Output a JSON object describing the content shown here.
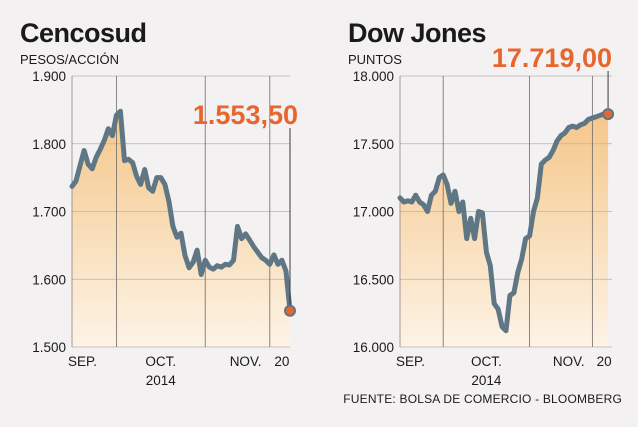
{
  "source": "FUENTE: BOLSA DE COMERCIO - BLOOMBERG",
  "colors": {
    "line": "#5f7684",
    "accent": "#e8662e",
    "area_top": "#f5c78a",
    "area_bottom": "#fdf3e6"
  },
  "chart_data": [
    {
      "type": "area",
      "title": "Cencosud",
      "ylabel": "PESOS/ACCIÓN",
      "ylim": [
        1500,
        1900
      ],
      "yticks": [
        1500,
        1600,
        1700,
        1800,
        1900
      ],
      "ytick_labels": [
        "1.500",
        "1.600",
        "1.700",
        "1.800",
        "1.900"
      ],
      "xticks": [
        {
          "label": "SEP.",
          "x": 1
        },
        {
          "label": "OCT.",
          "x": 22
        },
        {
          "label": "NOV.",
          "x": 43
        },
        {
          "label": "20",
          "x": 52
        }
      ],
      "month_lines": [
        11,
        33,
        49
      ],
      "xlim": [
        0,
        54
      ],
      "year": "2014",
      "last_value_label": "1.553,50",
      "series": [
        {
          "values": [
            1737,
            1745,
            1768,
            1790,
            1770,
            1763,
            1780,
            1792,
            1805,
            1822,
            1812,
            1842,
            1848,
            1775,
            1777,
            1772,
            1752,
            1740,
            1762,
            1735,
            1730,
            1750,
            1750,
            1740,
            1715,
            1678,
            1662,
            1668,
            1635,
            1617,
            1625,
            1643,
            1607,
            1628,
            1618,
            1615,
            1620,
            1618,
            1622,
            1621,
            1628,
            1678,
            1660,
            1667,
            1658,
            1648,
            1640,
            1632,
            1628,
            1622,
            1636,
            1622,
            1628,
            1612,
            1553.5
          ]
        }
      ]
    },
    {
      "type": "area",
      "title": "Dow Jones",
      "ylabel": "PUNTOS",
      "ylim": [
        16000,
        18000
      ],
      "yticks": [
        16000,
        16500,
        17000,
        17500,
        18000
      ],
      "ytick_labels": [
        "16.000",
        "16.500",
        "17.000",
        "17.500",
        "18.000"
      ],
      "xticks": [
        {
          "label": "SEP.",
          "x": 1
        },
        {
          "label": "OCT.",
          "x": 22
        },
        {
          "label": "NOV.",
          "x": 43
        },
        {
          "label": "20",
          "x": 52
        }
      ],
      "month_lines": [
        11,
        33,
        49
      ],
      "xlim": [
        0,
        54
      ],
      "year": "2014",
      "last_value_label": "17.719,00",
      "series": [
        {
          "values": [
            17100,
            17070,
            17080,
            17070,
            17120,
            17070,
            17050,
            17000,
            17120,
            17150,
            17250,
            17270,
            17200,
            17060,
            17150,
            17000,
            17070,
            16800,
            16950,
            16800,
            17000,
            16990,
            16700,
            16600,
            16320,
            16280,
            16150,
            16120,
            16380,
            16400,
            16550,
            16650,
            16800,
            16820,
            17000,
            17100,
            17350,
            17380,
            17400,
            17450,
            17520,
            17560,
            17580,
            17620,
            17630,
            17620,
            17640,
            17650,
            17680,
            17690,
            17700,
            17710,
            17720,
            17719
          ]
        }
      ]
    }
  ]
}
